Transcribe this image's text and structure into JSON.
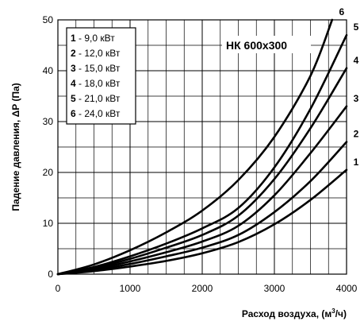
{
  "chart_data": {
    "type": "line",
    "title": "НК 600х300",
    "xlabel": "Расход воздуха, (м³/ч)",
    "ylabel": "Падение давления, ΔP (Па)",
    "xlim": [
      0,
      4000
    ],
    "ylim": [
      0,
      50
    ],
    "x_ticks": [
      "0",
      "1000",
      "2000",
      "3000",
      "4000"
    ],
    "y_ticks": [
      "0",
      "10",
      "20",
      "30",
      "40",
      "50"
    ],
    "grid": true,
    "legend_position": "top-left",
    "legend": [
      {
        "num": "1",
        "text": " -  9,0 кВт"
      },
      {
        "num": "2",
        "text": " - 12,0 кВт"
      },
      {
        "num": "3",
        "text": " - 15,0 кВт"
      },
      {
        "num": "4",
        "text": " - 18,0 кВт"
      },
      {
        "num": "5",
        "text": " - 21,0 кВт"
      },
      {
        "num": "6",
        "text": " - 24,0 кВт"
      }
    ],
    "series": [
      {
        "name": "1",
        "x": [
          0,
          500,
          1000,
          1500,
          2000,
          2500,
          3000,
          3500,
          4000
        ],
        "y": [
          0,
          0.6,
          1.5,
          2.6,
          4.1,
          6.3,
          9.8,
          14.6,
          20.5
        ]
      },
      {
        "name": "2",
        "x": [
          0,
          500,
          1000,
          1500,
          2000,
          2500,
          3000,
          3500,
          4000
        ],
        "y": [
          0,
          0.8,
          2.0,
          3.5,
          5.2,
          7.7,
          12.2,
          18.3,
          26.0
        ]
      },
      {
        "name": "3",
        "x": [
          0,
          500,
          1000,
          1500,
          2000,
          2500,
          3000,
          3500,
          4000
        ],
        "y": [
          0,
          1.0,
          2.5,
          4.3,
          6.4,
          9.5,
          15.5,
          23.8,
          33.0
        ]
      },
      {
        "name": "4",
        "x": [
          0,
          500,
          1000,
          1500,
          2000,
          2500,
          3000,
          3500,
          4000
        ],
        "y": [
          0,
          1.2,
          3.0,
          5.2,
          7.7,
          11.5,
          18.7,
          28.7,
          40.5
        ]
      },
      {
        "name": "5",
        "x": [
          0,
          500,
          1000,
          1500,
          2000,
          2500,
          3000,
          3500,
          4000
        ],
        "y": [
          0,
          1.4,
          3.5,
          6.0,
          9.0,
          13.0,
          21.0,
          32.5,
          47.0
        ]
      },
      {
        "name": "6",
        "x": [
          0,
          500,
          1000,
          1500,
          2000,
          2500,
          3000,
          3500,
          3800
        ],
        "y": [
          0,
          1.9,
          4.7,
          8.2,
          12.5,
          18.5,
          27.0,
          39.0,
          50.0
        ]
      }
    ],
    "colors": {
      "line": "#000000",
      "grid": "#000000",
      "background": "#ffffff"
    }
  }
}
